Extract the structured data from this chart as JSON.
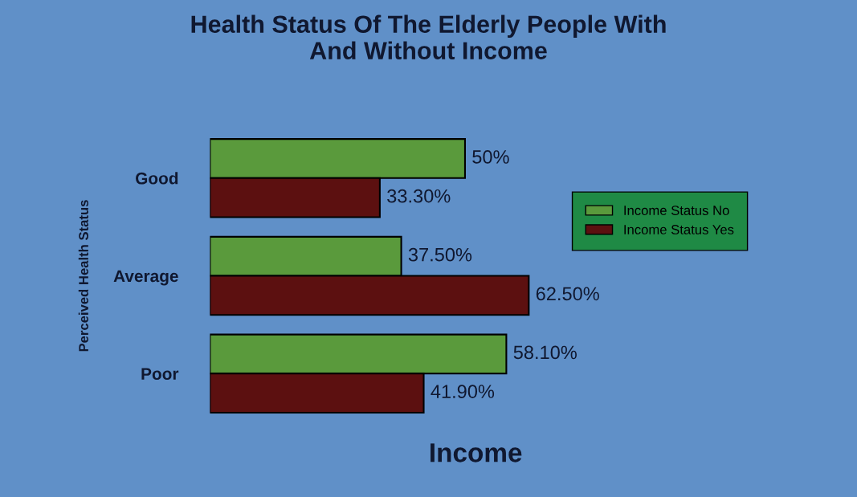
{
  "chart_data": {
    "type": "bar",
    "orientation": "horizontal",
    "title": "Health Status Of The Elderly People With\nAnd Without Income",
    "xlabel": "Income",
    "ylabel": "Perceived Health Status",
    "categories": [
      "Good",
      "Average",
      "Poor"
    ],
    "series": [
      {
        "name": "Income Status No",
        "color": "#5a9a3c",
        "values": [
          50,
          37.5,
          58.1
        ],
        "value_labels": [
          "50%",
          "37.50%",
          "58.10%"
        ]
      },
      {
        "name": "Income Status Yes",
        "color": "#5c1010",
        "values": [
          33.3,
          62.5,
          41.9
        ],
        "value_labels": [
          "33.30%",
          "62.50%",
          "41.90%"
        ]
      }
    ],
    "legend": "right",
    "grid": false
  }
}
